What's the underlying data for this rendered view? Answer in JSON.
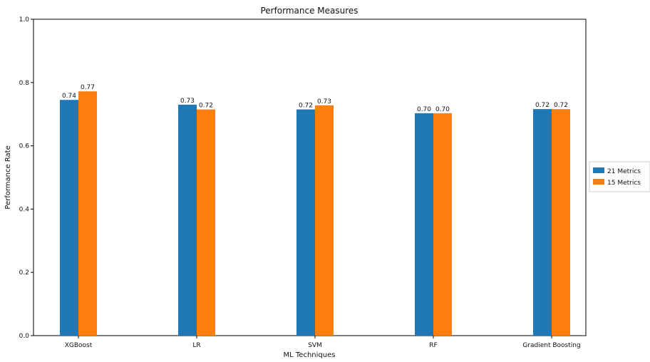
{
  "chart_data": {
    "type": "bar",
    "title": "Performance Measures",
    "xlabel": "ML Techniques",
    "ylabel": "Performance Rate",
    "ylim": [
      0,
      1.0
    ],
    "yticks": [
      "0.0",
      "0.2",
      "0.4",
      "0.6",
      "0.8",
      "1.0"
    ],
    "categories": [
      "XGBoost",
      "LR",
      "SVM",
      "RF",
      "Gradient Boosting"
    ],
    "series": [
      {
        "name": "21 Metrics",
        "color": "#1f77b4",
        "values": [
          0.745,
          0.73,
          0.715,
          0.703,
          0.716
        ],
        "labels": [
          "0.74",
          "0.73",
          "0.72",
          "0.70",
          "0.72"
        ]
      },
      {
        "name": "15 Metrics",
        "color": "#ff7f0e",
        "values": [
          0.772,
          0.715,
          0.728,
          0.703,
          0.716
        ],
        "labels": [
          "0.77",
          "0.72",
          "0.73",
          "0.70",
          "0.72"
        ]
      }
    ],
    "grid": false,
    "legend_position": "outside-right"
  }
}
